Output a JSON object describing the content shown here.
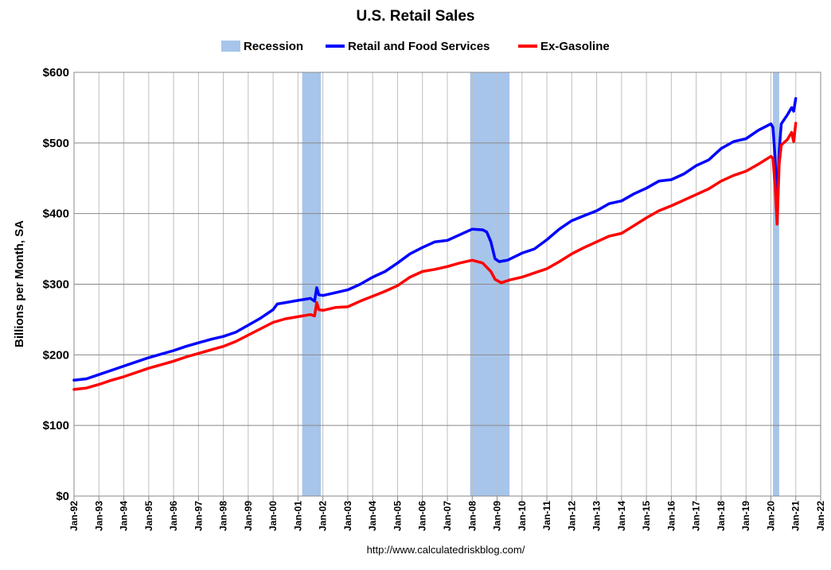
{
  "chart_data": {
    "type": "line",
    "title": "U.S. Retail Sales",
    "ylabel": "Billions per Month, SA",
    "xlabel": "",
    "source": "http://www.calculatedriskblog.com/",
    "ylim": [
      0,
      600
    ],
    "xlim": [
      "1992-01",
      "2022-01"
    ],
    "grid": true,
    "legend_position": "top",
    "yticks": [
      {
        "value": 0,
        "label": "$0"
      },
      {
        "value": 100,
        "label": "$100"
      },
      {
        "value": 200,
        "label": "$200"
      },
      {
        "value": 300,
        "label": "$300"
      },
      {
        "value": 400,
        "label": "$400"
      },
      {
        "value": 500,
        "label": "$500"
      },
      {
        "value": 600,
        "label": "$600"
      }
    ],
    "xticks": [
      "Jan-92",
      "Jan-93",
      "Jan-94",
      "Jan-95",
      "Jan-96",
      "Jan-97",
      "Jan-98",
      "Jan-99",
      "Jan-00",
      "Jan-01",
      "Jan-02",
      "Jan-03",
      "Jan-04",
      "Jan-05",
      "Jan-06",
      "Jan-07",
      "Jan-08",
      "Jan-09",
      "Jan-10",
      "Jan-11",
      "Jan-12",
      "Jan-13",
      "Jan-14",
      "Jan-15",
      "Jan-16",
      "Jan-17",
      "Jan-18",
      "Jan-19",
      "Jan-20",
      "Jan-21",
      "Jan-22"
    ],
    "recessions": {
      "name": "Recession",
      "color": "#a7c5eb",
      "periods": [
        [
          "2001-03",
          "2001-11"
        ],
        [
          "2007-12",
          "2009-06"
        ],
        [
          "2020-02",
          "2020-04"
        ]
      ]
    },
    "series": [
      {
        "name": "Retail and Food Services",
        "color": "#0000ff",
        "points": [
          [
            "1992-01",
            164
          ],
          [
            "1992-07",
            166
          ],
          [
            "1993-01",
            172
          ],
          [
            "1993-07",
            178
          ],
          [
            "1994-01",
            184
          ],
          [
            "1994-07",
            190
          ],
          [
            "1995-01",
            196
          ],
          [
            "1995-07",
            201
          ],
          [
            "1996-01",
            206
          ],
          [
            "1996-07",
            212
          ],
          [
            "1997-01",
            217
          ],
          [
            "1997-07",
            222
          ],
          [
            "1998-01",
            226
          ],
          [
            "1998-07",
            232
          ],
          [
            "1999-01",
            242
          ],
          [
            "1999-07",
            252
          ],
          [
            "2000-01",
            264
          ],
          [
            "2000-03",
            272
          ],
          [
            "2000-07",
            274
          ],
          [
            "2001-01",
            277
          ],
          [
            "2001-07",
            280
          ],
          [
            "2001-09",
            276
          ],
          [
            "2001-10",
            295
          ],
          [
            "2001-11",
            285
          ],
          [
            "2002-01",
            284
          ],
          [
            "2002-07",
            288
          ],
          [
            "2003-01",
            292
          ],
          [
            "2003-07",
            300
          ],
          [
            "2004-01",
            310
          ],
          [
            "2004-07",
            318
          ],
          [
            "2005-01",
            330
          ],
          [
            "2005-07",
            343
          ],
          [
            "2006-01",
            352
          ],
          [
            "2006-07",
            360
          ],
          [
            "2007-01",
            362
          ],
          [
            "2007-07",
            370
          ],
          [
            "2008-01",
            378
          ],
          [
            "2008-06",
            377
          ],
          [
            "2008-08",
            374
          ],
          [
            "2008-10",
            360
          ],
          [
            "2008-12",
            336
          ],
          [
            "2009-02",
            332
          ],
          [
            "2009-06",
            334
          ],
          [
            "2010-01",
            344
          ],
          [
            "2010-07",
            350
          ],
          [
            "2011-01",
            363
          ],
          [
            "2011-07",
            378
          ],
          [
            "2012-01",
            390
          ],
          [
            "2012-07",
            397
          ],
          [
            "2013-01",
            404
          ],
          [
            "2013-07",
            414
          ],
          [
            "2014-01",
            418
          ],
          [
            "2014-07",
            428
          ],
          [
            "2015-01",
            436
          ],
          [
            "2015-07",
            446
          ],
          [
            "2016-01",
            448
          ],
          [
            "2016-07",
            456
          ],
          [
            "2017-01",
            468
          ],
          [
            "2017-07",
            476
          ],
          [
            "2018-01",
            492
          ],
          [
            "2018-07",
            502
          ],
          [
            "2019-01",
            506
          ],
          [
            "2019-07",
            518
          ],
          [
            "2020-01",
            527
          ],
          [
            "2020-02",
            522
          ],
          [
            "2020-03",
            480
          ],
          [
            "2020-04",
            412
          ],
          [
            "2020-05",
            488
          ],
          [
            "2020-06",
            527
          ],
          [
            "2020-09",
            540
          ],
          [
            "2020-11",
            550
          ],
          [
            "2020-12",
            545
          ],
          [
            "2021-01",
            563
          ]
        ]
      },
      {
        "name": "Ex-Gasoline",
        "color": "#ff0000",
        "points": [
          [
            "1992-01",
            151
          ],
          [
            "1992-07",
            153
          ],
          [
            "1993-01",
            158
          ],
          [
            "1993-07",
            164
          ],
          [
            "1994-01",
            169
          ],
          [
            "1994-07",
            175
          ],
          [
            "1995-01",
            181
          ],
          [
            "1995-07",
            186
          ],
          [
            "1996-01",
            191
          ],
          [
            "1996-07",
            197
          ],
          [
            "1997-01",
            202
          ],
          [
            "1997-07",
            207
          ],
          [
            "1998-01",
            212
          ],
          [
            "1998-07",
            219
          ],
          [
            "1999-01",
            228
          ],
          [
            "1999-07",
            237
          ],
          [
            "2000-01",
            246
          ],
          [
            "2000-07",
            251
          ],
          [
            "2001-01",
            254
          ],
          [
            "2001-07",
            257
          ],
          [
            "2001-09",
            255
          ],
          [
            "2001-10",
            274
          ],
          [
            "2001-11",
            264
          ],
          [
            "2002-01",
            263
          ],
          [
            "2002-07",
            267
          ],
          [
            "2003-01",
            268
          ],
          [
            "2003-07",
            276
          ],
          [
            "2004-01",
            283
          ],
          [
            "2004-07",
            290
          ],
          [
            "2005-01",
            298
          ],
          [
            "2005-07",
            310
          ],
          [
            "2006-01",
            318
          ],
          [
            "2006-07",
            321
          ],
          [
            "2007-01",
            325
          ],
          [
            "2007-07",
            330
          ],
          [
            "2008-01",
            334
          ],
          [
            "2008-06",
            330
          ],
          [
            "2008-10",
            318
          ],
          [
            "2008-12",
            307
          ],
          [
            "2009-03",
            302
          ],
          [
            "2009-07",
            306
          ],
          [
            "2010-01",
            310
          ],
          [
            "2010-07",
            316
          ],
          [
            "2011-01",
            322
          ],
          [
            "2011-07",
            332
          ],
          [
            "2012-01",
            343
          ],
          [
            "2012-07",
            352
          ],
          [
            "2013-01",
            360
          ],
          [
            "2013-07",
            368
          ],
          [
            "2014-01",
            372
          ],
          [
            "2014-07",
            383
          ],
          [
            "2015-01",
            394
          ],
          [
            "2015-07",
            404
          ],
          [
            "2016-01",
            411
          ],
          [
            "2016-07",
            419
          ],
          [
            "2017-01",
            427
          ],
          [
            "2017-07",
            435
          ],
          [
            "2018-01",
            446
          ],
          [
            "2018-07",
            454
          ],
          [
            "2019-01",
            460
          ],
          [
            "2019-07",
            470
          ],
          [
            "2020-01",
            481
          ],
          [
            "2020-02",
            478
          ],
          [
            "2020-03",
            440
          ],
          [
            "2020-04",
            385
          ],
          [
            "2020-05",
            470
          ],
          [
            "2020-06",
            497
          ],
          [
            "2020-09",
            505
          ],
          [
            "2020-11",
            515
          ],
          [
            "2020-12",
            502
          ],
          [
            "2021-01",
            528
          ]
        ]
      }
    ]
  }
}
